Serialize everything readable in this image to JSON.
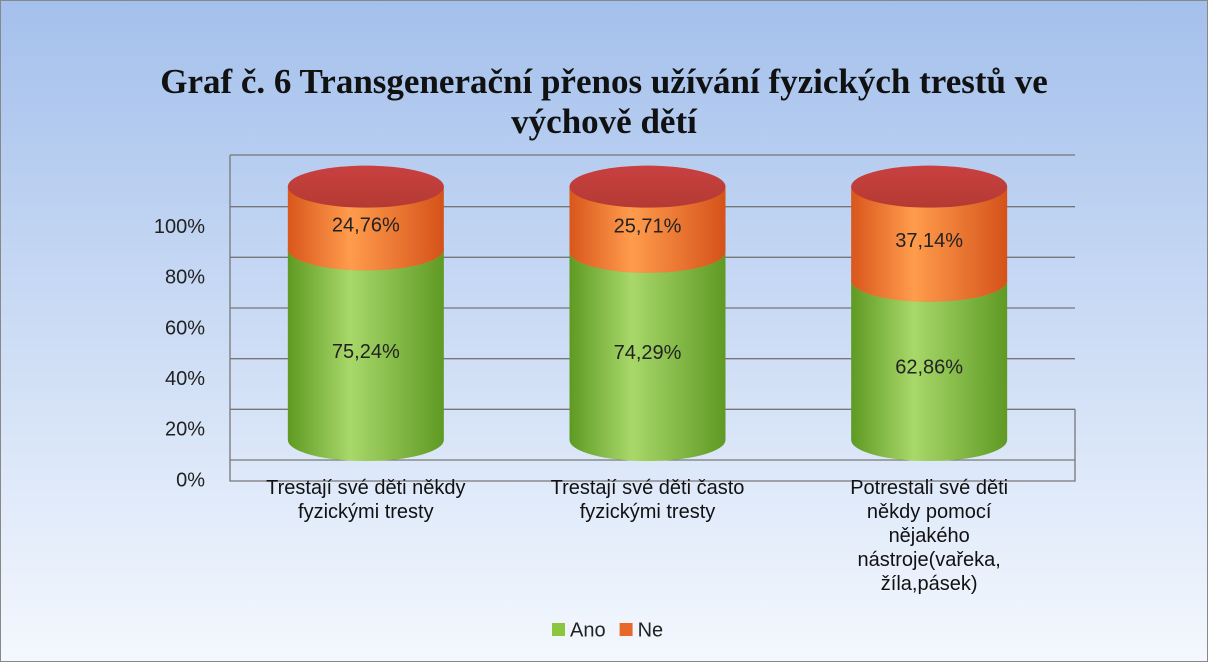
{
  "chart_data": {
    "type": "stacked-cylinder",
    "title": "Graf č. 6 Transgenerační přenos užívání fyzických trestů ve\nvýchově dětí",
    "categories": [
      "Trestají své děti někdy\nfyzickými tresty",
      "Trestají své děti často\nfyzickými tresty",
      "Potrestali své děti\nněkdy pomocí\nnějakého\nnástroje(vařeka,\nžíla,pásek)"
    ],
    "series": [
      {
        "name": "Ano",
        "color": "#8cc63f",
        "values": [
          75.24,
          74.29,
          62.86
        ],
        "value_labels": [
          "75,24%",
          "74,29%",
          "62,86%"
        ]
      },
      {
        "name": "Ne",
        "color": "#e8682a",
        "values": [
          24.76,
          25.71,
          37.14
        ],
        "value_labels": [
          "24,76%",
          "25,71%",
          "37,14%"
        ]
      }
    ],
    "ylim": [
      0,
      120
    ],
    "yticks": [
      {
        "value": 0,
        "label": "0%"
      },
      {
        "value": 20,
        "label": "20%"
      },
      {
        "value": 40,
        "label": "40%"
      },
      {
        "value": 60,
        "label": "60%"
      },
      {
        "value": 80,
        "label": "80%"
      },
      {
        "value": 100,
        "label": "100%"
      }
    ],
    "grid": true,
    "legend": "bottom"
  }
}
